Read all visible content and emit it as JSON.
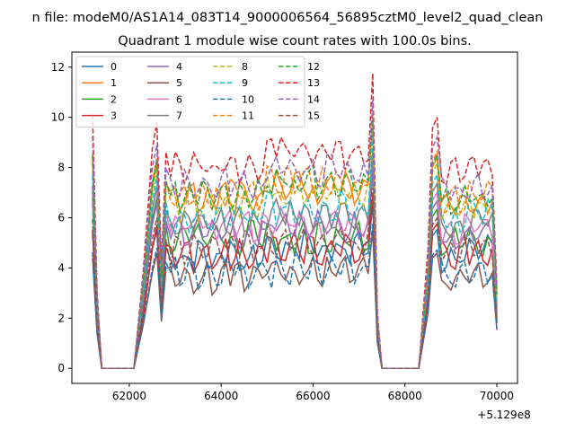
{
  "figure": {
    "suptitle": "n file: modeM0/AS1A14_083T14_9000006564_56895cztM0_level2_quad_clean",
    "offset_label": "+5.129e8"
  },
  "chart_data": {
    "type": "line",
    "title": "Quadrant 1 module wise count rates with 100.0s bins.",
    "xlabel": "",
    "ylabel": "",
    "xlim": [
      60750,
      70450
    ],
    "ylim": [
      -0.6,
      12.6
    ],
    "x_offset": 512900000,
    "xticks": [
      62000,
      64000,
      66000,
      68000,
      70000
    ],
    "yticks": [
      0,
      2,
      4,
      6,
      8,
      10,
      12
    ],
    "grid": false,
    "legend": {
      "placement": "top-left",
      "columns": 4
    },
    "colors": [
      "#1f77b4",
      "#ff7f0e",
      "#2ca02c",
      "#d62728",
      "#9467bd",
      "#8c564b",
      "#e377c2",
      "#7f7f7f",
      "#bcbd22",
      "#17becf"
    ],
    "series": [
      {
        "name": "0",
        "style": "solid",
        "values": [
          4.2,
          5.0,
          5.5,
          4.6,
          5.0,
          4.4,
          4.8,
          5.0
        ]
      },
      {
        "name": "1",
        "style": "solid",
        "values": [
          6.5,
          7.6,
          8.2,
          7.0,
          7.4,
          6.6,
          7.3,
          6.8
        ]
      },
      {
        "name": "2",
        "style": "solid",
        "values": [
          5.0,
          6.2,
          6.8,
          5.4,
          5.4,
          5.1,
          5.5,
          5.2
        ]
      },
      {
        "name": "3",
        "style": "solid",
        "values": [
          4.0,
          5.0,
          5.7,
          4.7,
          5.0,
          4.6,
          5.0,
          4.8
        ]
      },
      {
        "name": "4",
        "style": "solid",
        "values": [
          4.9,
          6.0,
          6.6,
          5.6,
          5.9,
          5.2,
          5.8,
          5.4
        ]
      },
      {
        "name": "5",
        "style": "solid",
        "values": [
          3.4,
          4.0,
          4.6,
          3.8,
          4.0,
          3.6,
          4.0,
          3.8
        ]
      },
      {
        "name": "6",
        "style": "solid",
        "values": [
          5.6,
          6.6,
          7.2,
          5.9,
          6.1,
          5.5,
          6.1,
          5.8
        ]
      },
      {
        "name": "7",
        "style": "solid",
        "values": [
          5.5,
          6.6,
          7.3,
          6.0,
          6.4,
          5.7,
          6.4,
          6.0
        ]
      },
      {
        "name": "8",
        "style": "dashed",
        "values": [
          6.3,
          7.4,
          8.0,
          6.7,
          7.2,
          6.4,
          7.1,
          6.6
        ]
      },
      {
        "name": "9",
        "style": "dashed",
        "values": [
          5.9,
          7.0,
          7.7,
          6.3,
          6.6,
          6.0,
          6.7,
          6.3
        ]
      },
      {
        "name": "10",
        "style": "dashed",
        "values": [
          3.6,
          4.2,
          4.8,
          4.0,
          4.1,
          3.8,
          4.1,
          3.9
        ]
      },
      {
        "name": "11",
        "style": "dashed",
        "values": [
          6.7,
          7.8,
          8.4,
          7.1,
          7.6,
          6.8,
          7.5,
          7.0
        ]
      },
      {
        "name": "12",
        "style": "dashed",
        "values": [
          6.6,
          7.7,
          8.3,
          7.1,
          7.6,
          6.7,
          7.4,
          6.9
        ]
      },
      {
        "name": "13",
        "style": "dashed",
        "values": [
          7.6,
          9.2,
          9.8,
          8.2,
          8.8,
          7.9,
          8.7,
          8.0
        ]
      },
      {
        "name": "14",
        "style": "dashed",
        "values": [
          7.2,
          8.4,
          8.9,
          7.6,
          8.1,
          7.2,
          8.0,
          7.4
        ]
      },
      {
        "name": "15",
        "style": "dashed",
        "values": [
          4.6,
          5.4,
          6.0,
          4.9,
          5.2,
          4.7,
          5.2,
          4.9
        ]
      }
    ]
  }
}
